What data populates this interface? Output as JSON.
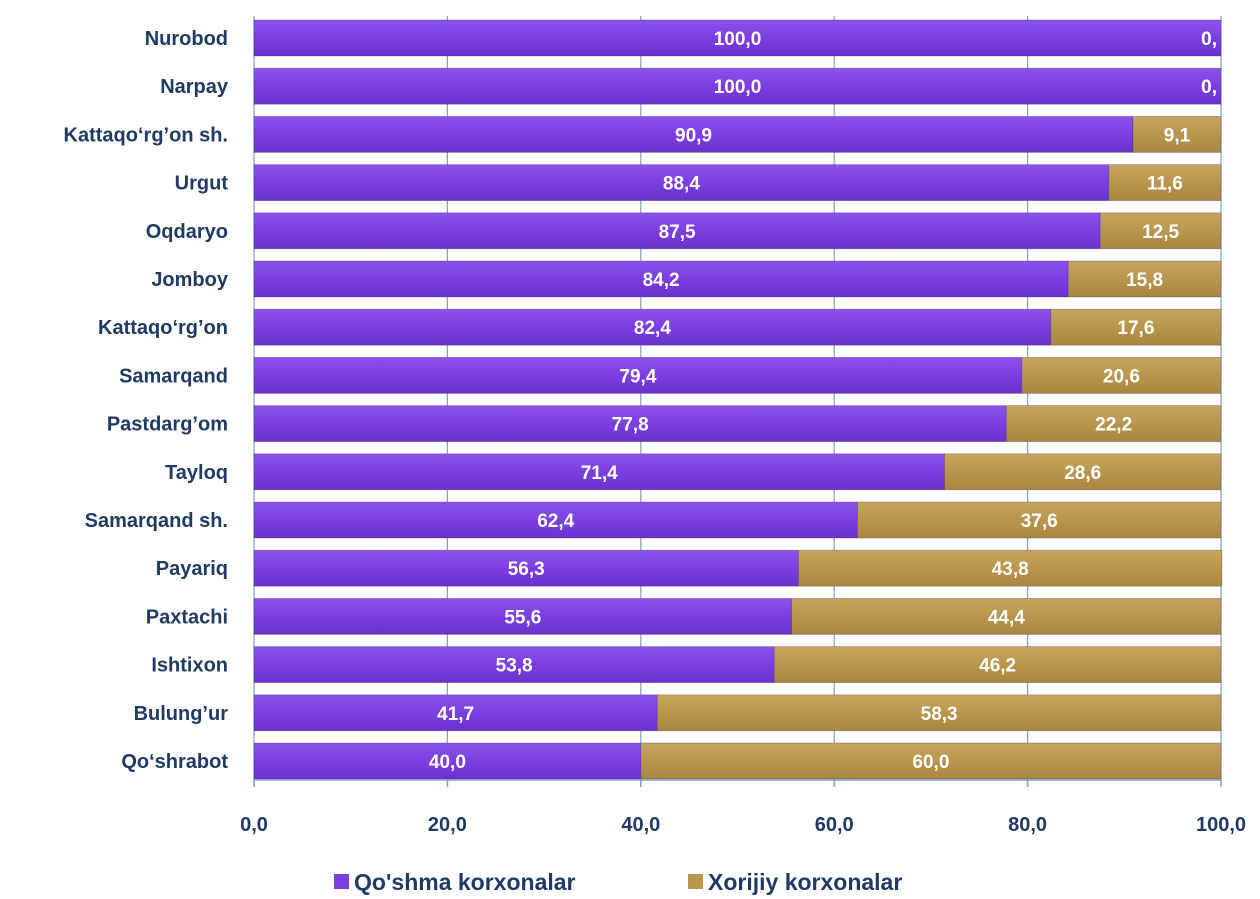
{
  "chart_data": {
    "type": "bar",
    "orientation": "horizontal",
    "stacked": true,
    "categories": [
      "Nurobod",
      "Narpay",
      "Kattaqo‘rg’on sh.",
      "Urgut",
      "Oqdaryo",
      "Jomboy",
      "Kattaqo‘rg’on",
      "Samarqand",
      "Pastdarg’om",
      "Tayloq",
      "Samarqand sh.",
      "Payariq",
      "Paxtachi",
      "Ishtixon",
      "Bulung’ur",
      "Qo‘shrabot"
    ],
    "series": [
      {
        "name": "Qo'shma korxonalar",
        "color": "#7b3fe0",
        "values": [
          100.0,
          100.0,
          90.9,
          88.4,
          87.5,
          84.2,
          82.4,
          79.4,
          77.8,
          71.4,
          62.4,
          56.3,
          55.6,
          53.8,
          41.7,
          40.0
        ],
        "labels": [
          "100,0",
          "100,0",
          "90,9",
          "88,4",
          "87,5",
          "84,2",
          "82,4",
          "79,4",
          "77,8",
          "71,4",
          "62,4",
          "56,3",
          "55,6",
          "53,8",
          "41,7",
          "40,0"
        ]
      },
      {
        "name": "Xorijiy korxonalar",
        "color": "#b8964e",
        "values": [
          0.0,
          0.0,
          9.1,
          11.6,
          12.5,
          15.8,
          17.6,
          20.6,
          22.2,
          28.6,
          37.6,
          43.8,
          44.4,
          46.2,
          58.3,
          60.0
        ],
        "labels": [
          "0,",
          "0,",
          "9,1",
          "11,6",
          "12,5",
          "15,8",
          "17,6",
          "20,6",
          "22,2",
          "28,6",
          "37,6",
          "43,8",
          "44,4",
          "46,2",
          "58,3",
          "60,0"
        ]
      }
    ],
    "xlim": [
      0,
      100
    ],
    "xticks": [
      0,
      20,
      40,
      60,
      80,
      100
    ],
    "xtick_labels": [
      "0,0",
      "20,0",
      "40,0",
      "60,0",
      "80,0",
      "100,0"
    ],
    "grid": "vertical",
    "legend_position": "bottom",
    "title": "",
    "xlabel": "",
    "ylabel": ""
  }
}
